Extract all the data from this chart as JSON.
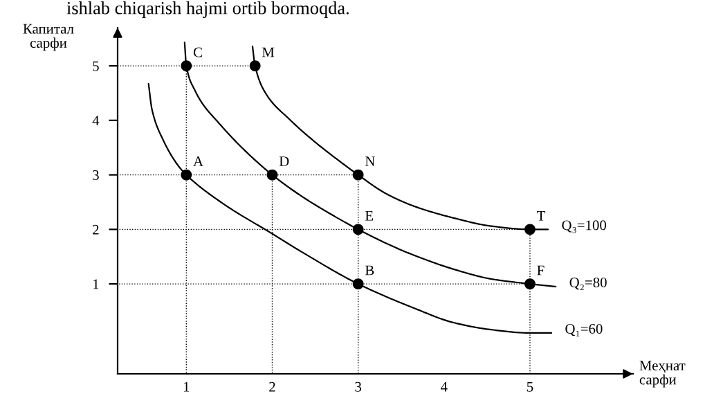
{
  "chart_data": {
    "type": "line",
    "xlabel": "Меҳнат сарфи",
    "ylabel": "Капитал сарфи",
    "xlim": [
      0.2,
      6.2
    ],
    "ylim": [
      -0.65,
      5.7
    ],
    "xticks": [
      1,
      2,
      3,
      4,
      5
    ],
    "yticks": [
      1,
      2,
      3,
      4,
      5
    ],
    "series": [
      {
        "name": "Q₁=60",
        "color": "#000000",
        "x": [
          0.56,
          0.6,
          0.73,
          0.9,
          1,
          1.43,
          2,
          2.35,
          3,
          3.66,
          4.11,
          4.55,
          5,
          5.25
        ],
        "values": [
          4.67,
          4.2,
          3.64,
          3.18,
          3,
          2.47,
          1.92,
          1.58,
          1,
          0.55,
          0.29,
          0.16,
          0.1,
          0.1
        ]
      },
      {
        "name": "Q₂=80",
        "color": "#000000",
        "x": [
          0.98,
          1,
          1.1,
          1.2,
          1.35,
          1.64,
          2,
          2.35,
          2.66,
          3,
          3.43,
          3.66,
          4.11,
          4.55,
          5,
          5.3
        ],
        "values": [
          5.43,
          5,
          4.55,
          4.28,
          4.0,
          3.51,
          3,
          2.6,
          2.3,
          2,
          1.67,
          1.52,
          1.27,
          1.09,
          1,
          0.95
        ]
      },
      {
        "name": "Q₃=100",
        "color": "#000000",
        "x": [
          1.77,
          1.8,
          1.93,
          2.2,
          2.5,
          2.81,
          3,
          3.32,
          3.66,
          4.11,
          4.55,
          5,
          5.21
        ],
        "values": [
          5.36,
          5,
          4.48,
          4.02,
          3.6,
          3.22,
          3,
          2.66,
          2.42,
          2.21,
          2.06,
          2,
          2
        ]
      },
      {
        "type": "scatter",
        "color": "#000000",
        "marker": "circle",
        "x": [
          1,
          3,
          1,
          2,
          3,
          5,
          1.8,
          3,
          5
        ],
        "values": [
          3,
          1,
          5,
          3,
          2,
          1,
          5,
          3,
          2
        ]
      }
    ],
    "ref_lines": [
      {
        "axis": "y",
        "value": 5,
        "line_style": "dotted",
        "color": "#000000"
      },
      {
        "axis": "y",
        "value": 3,
        "line_style": "dotted",
        "color": "#000000"
      },
      {
        "axis": "y",
        "value": 2,
        "line_style": "dotted",
        "color": "#000000"
      },
      {
        "axis": "y",
        "value": 1,
        "line_style": "dotted",
        "color": "#000000"
      },
      {
        "axis": "x",
        "value": 1,
        "line_style": "dotted",
        "color": "#000000"
      },
      {
        "axis": "x",
        "value": 2,
        "line_style": "dotted",
        "color": "#000000"
      },
      {
        "axis": "x",
        "value": 3,
        "line_style": "dotted",
        "color": "#000000"
      },
      {
        "axis": "x",
        "value": 5,
        "line_style": "dotted",
        "color": "#000000"
      }
    ],
    "annotations": [
      "ishlab chiqarish hajmi ortib bormoqda.",
      {
        "text": "A",
        "x": 1,
        "y": 3
      },
      {
        "text": "B",
        "x": 3,
        "y": 1
      },
      {
        "text": "C",
        "x": 1,
        "y": 5
      },
      {
        "text": "D",
        "x": 2,
        "y": 3
      },
      {
        "text": "E",
        "x": 3,
        "y": 2
      },
      {
        "text": "F",
        "x": 5,
        "y": 1
      },
      {
        "text": "M",
        "x": 1.8,
        "y": 5
      },
      {
        "text": "N",
        "x": 3,
        "y": 3
      },
      {
        "text": "T",
        "x": 5,
        "y": 2
      }
    ]
  }
}
